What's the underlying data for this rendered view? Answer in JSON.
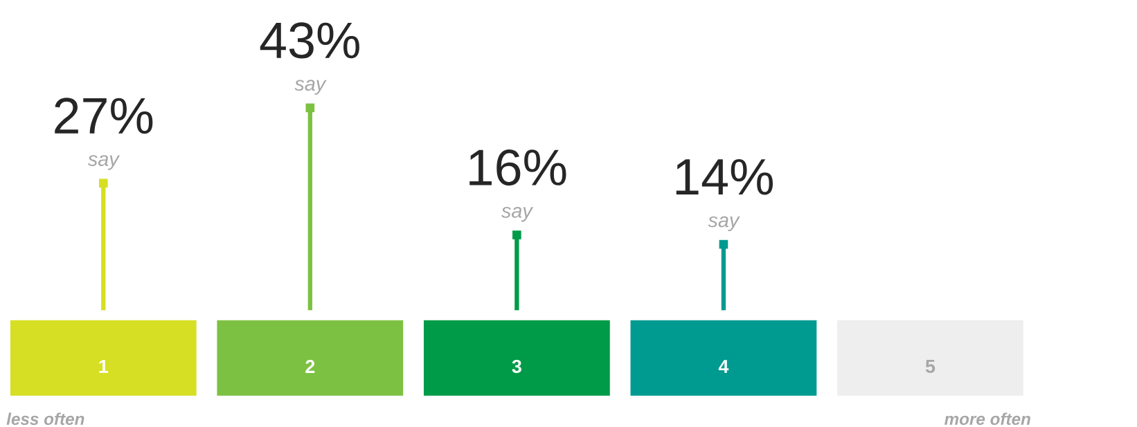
{
  "chart_data": {
    "type": "lollipop",
    "categories": [
      "1",
      "2",
      "3",
      "4",
      "5"
    ],
    "values": [
      27,
      43,
      16,
      14,
      null
    ],
    "colors": [
      "#d6df23",
      "#7dc142",
      "#009b48",
      "#009b90",
      "#d4d4d4"
    ],
    "value_labels": [
      "27%",
      "43%",
      "16%",
      "14%",
      null
    ],
    "annotations": [
      "say",
      "say",
      "say",
      "say",
      "less often",
      "more often"
    ]
  }
}
